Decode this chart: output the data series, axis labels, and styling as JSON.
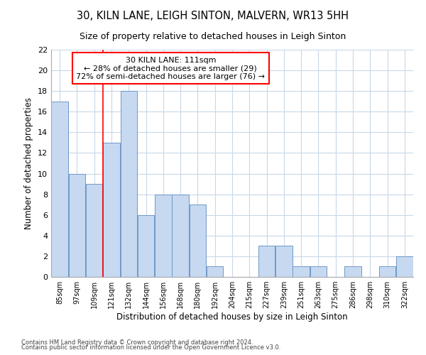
{
  "title": "30, KILN LANE, LEIGH SINTON, MALVERN, WR13 5HH",
  "subtitle": "Size of property relative to detached houses in Leigh Sinton",
  "xlabel": "Distribution of detached houses by size in Leigh Sinton",
  "ylabel": "Number of detached properties",
  "categories": [
    "85sqm",
    "97sqm",
    "109sqm",
    "121sqm",
    "132sqm",
    "144sqm",
    "156sqm",
    "168sqm",
    "180sqm",
    "192sqm",
    "204sqm",
    "215sqm",
    "227sqm",
    "239sqm",
    "251sqm",
    "263sqm",
    "275sqm",
    "286sqm",
    "298sqm",
    "310sqm",
    "322sqm"
  ],
  "values": [
    17,
    10,
    9,
    13,
    18,
    6,
    8,
    8,
    7,
    1,
    0,
    0,
    3,
    3,
    1,
    1,
    0,
    1,
    0,
    1,
    2
  ],
  "bar_color": "#c6d9f0",
  "bar_edge_color": "#7098c8",
  "ylim": [
    0,
    22
  ],
  "yticks": [
    0,
    2,
    4,
    6,
    8,
    10,
    12,
    14,
    16,
    18,
    20,
    22
  ],
  "annotation_line1": "30 KILN LANE: 111sqm",
  "annotation_line2": "← 28% of detached houses are smaller (29)",
  "annotation_line3": "72% of semi-detached houses are larger (76) →",
  "red_line_category": "109sqm",
  "background_color": "#ffffff",
  "grid_color": "#c8d8e8",
  "footer_line1": "Contains HM Land Registry data © Crown copyright and database right 2024.",
  "footer_line2": "Contains public sector information licensed under the Open Government Licence v3.0."
}
